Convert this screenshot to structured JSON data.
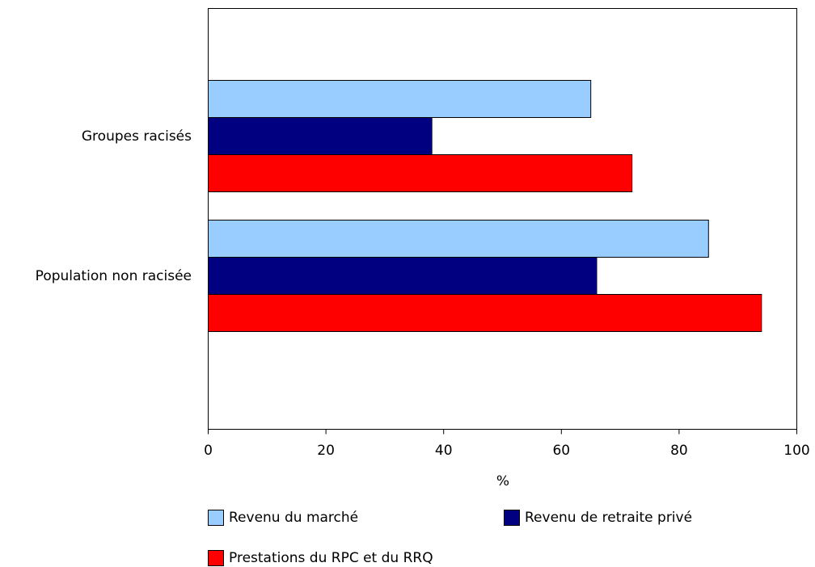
{
  "chart_data": {
    "type": "bar",
    "orientation": "horizontal",
    "categories": [
      "Groupes racisés",
      "Population non racisée"
    ],
    "series": [
      {
        "name": "Revenu du marché",
        "values": [
          65,
          85
        ],
        "color": "#99ccff"
      },
      {
        "name": "Revenu de retraite privé",
        "values": [
          38,
          66
        ],
        "color": "#000080"
      },
      {
        "name": "Prestations du RPC et du RRQ",
        "values": [
          72,
          94
        ],
        "color": "#ff0000"
      }
    ],
    "xlabel": "%",
    "xlim": [
      0,
      100
    ],
    "xticks": [
      "0",
      "20",
      "40",
      "60",
      "80",
      "100"
    ],
    "grid": false,
    "legend_position": "bottom"
  }
}
